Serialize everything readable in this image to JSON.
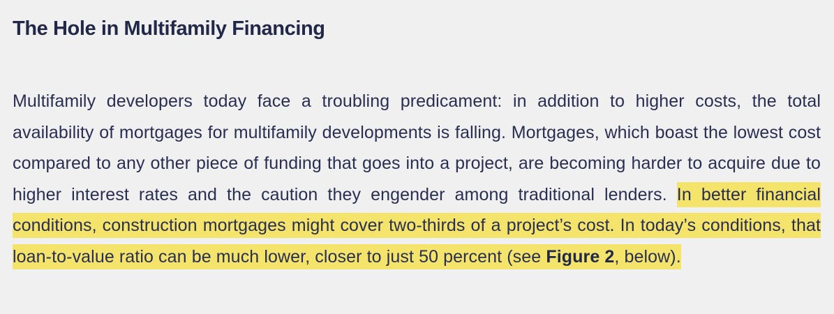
{
  "article": {
    "heading": "The Hole in Multifamily Financing",
    "paragraph": {
      "text_before": "Multifamily developers today face a troubling predicament: in addition to higher costs, the total availability of mortgages for multifamily developments is falling. Mortgages, which boast the lowest cost compared to any other piece of funding that goes into a project, are becoming harder to acquire due to higher interest rates and the caution they engender among traditional lenders. ",
      "highlight_lead": "In better financial conditions, construction mortgages might cover two-thirds of a project’s cost. In today’s conditions, that loan-to-value ratio can be much lower, closer to just 50 percent (see ",
      "figure_ref": "Figure 2",
      "highlight_tail": ", below)."
    },
    "highlight_color": "#f4e46b",
    "text_color": "#2a2f52"
  }
}
